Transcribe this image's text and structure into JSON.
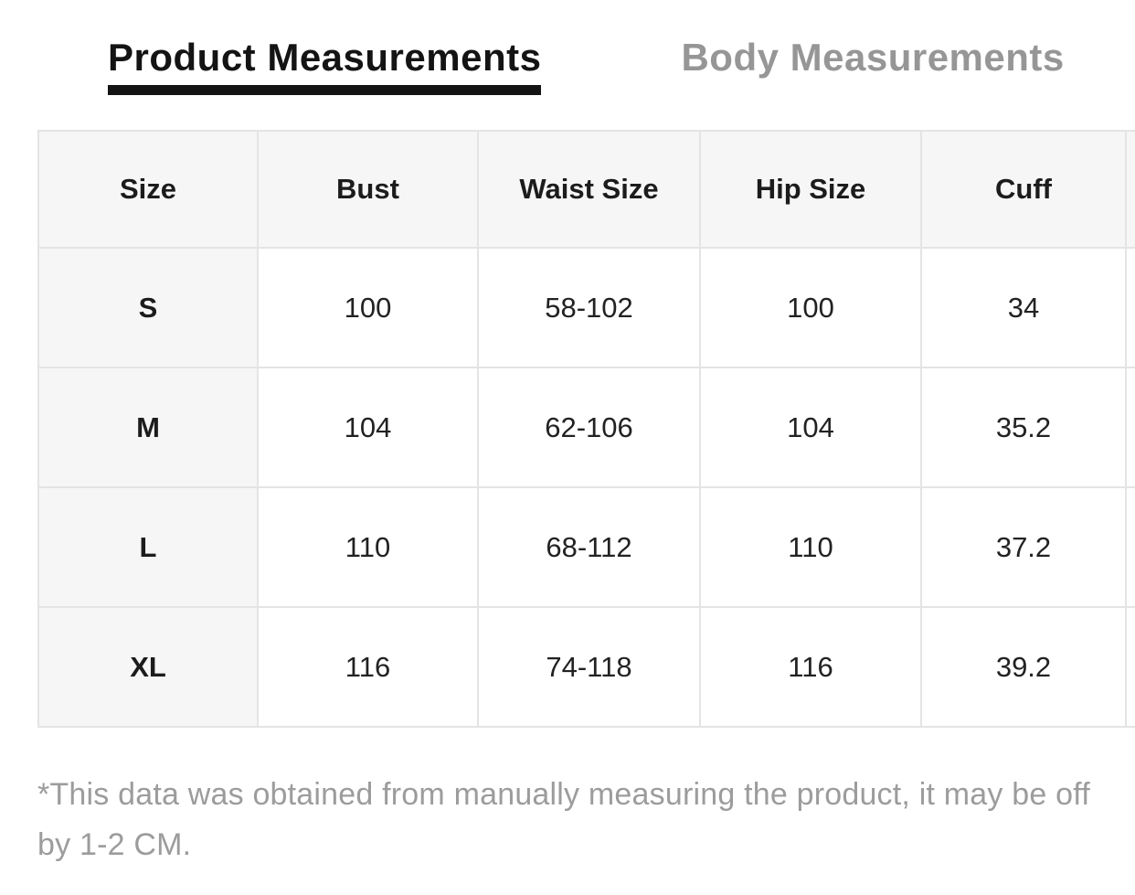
{
  "tabs": {
    "product_label": "Product Measurements",
    "body_label": "Body Measurements"
  },
  "table": {
    "columns": [
      "Size",
      "Bust",
      "Waist Size",
      "Hip Size",
      "Cuff"
    ],
    "rows": [
      {
        "size": "S",
        "values": [
          "100",
          "58-102",
          "100",
          "34"
        ]
      },
      {
        "size": "M",
        "values": [
          "104",
          "62-106",
          "104",
          "35.2"
        ]
      },
      {
        "size": "L",
        "values": [
          "110",
          "68-112",
          "110",
          "37.2"
        ]
      },
      {
        "size": "XL",
        "values": [
          "116",
          "74-118",
          "116",
          "39.2"
        ]
      }
    ]
  },
  "note_text": "*This data was obtained from manually measuring the product, it may be off by 1-2 CM.",
  "colors": {
    "active_tab": "#141414",
    "inactive_tab": "#969696",
    "header_bg": "#f6f6f6",
    "cell_border": "#e4e4e4",
    "note_text": "#9c9c9c"
  }
}
